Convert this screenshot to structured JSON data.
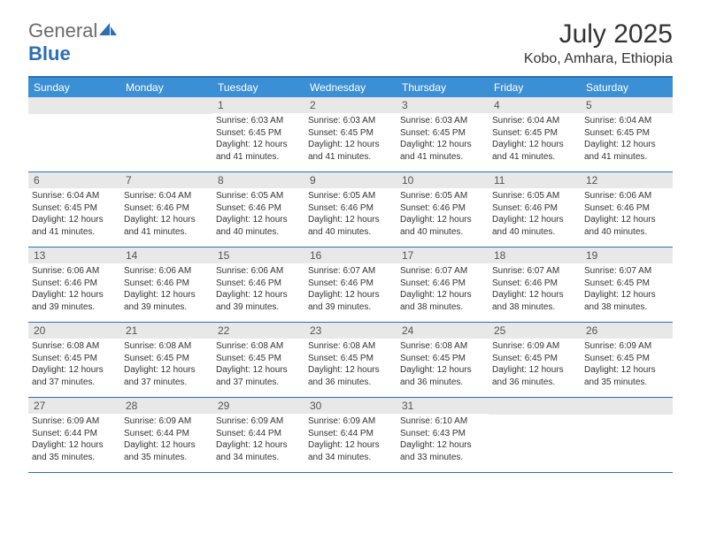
{
  "logo": {
    "text1": "General",
    "text2": "Blue"
  },
  "title": "July 2025",
  "location": "Kobo, Amhara, Ethiopia",
  "colors": {
    "header_bg": "#3b8fd4",
    "header_text": "#ffffff",
    "border": "#2c6fb3",
    "daynum_bg": "#e8e8e8",
    "daynum_text": "#555555",
    "body_text": "#333333"
  },
  "day_names": [
    "Sunday",
    "Monday",
    "Tuesday",
    "Wednesday",
    "Thursday",
    "Friday",
    "Saturday"
  ],
  "weeks": [
    [
      null,
      null,
      {
        "n": "1",
        "sr": "6:03 AM",
        "ss": "6:45 PM",
        "dl": "12 hours and 41 minutes."
      },
      {
        "n": "2",
        "sr": "6:03 AM",
        "ss": "6:45 PM",
        "dl": "12 hours and 41 minutes."
      },
      {
        "n": "3",
        "sr": "6:03 AM",
        "ss": "6:45 PM",
        "dl": "12 hours and 41 minutes."
      },
      {
        "n": "4",
        "sr": "6:04 AM",
        "ss": "6:45 PM",
        "dl": "12 hours and 41 minutes."
      },
      {
        "n": "5",
        "sr": "6:04 AM",
        "ss": "6:45 PM",
        "dl": "12 hours and 41 minutes."
      }
    ],
    [
      {
        "n": "6",
        "sr": "6:04 AM",
        "ss": "6:45 PM",
        "dl": "12 hours and 41 minutes."
      },
      {
        "n": "7",
        "sr": "6:04 AM",
        "ss": "6:46 PM",
        "dl": "12 hours and 41 minutes."
      },
      {
        "n": "8",
        "sr": "6:05 AM",
        "ss": "6:46 PM",
        "dl": "12 hours and 40 minutes."
      },
      {
        "n": "9",
        "sr": "6:05 AM",
        "ss": "6:46 PM",
        "dl": "12 hours and 40 minutes."
      },
      {
        "n": "10",
        "sr": "6:05 AM",
        "ss": "6:46 PM",
        "dl": "12 hours and 40 minutes."
      },
      {
        "n": "11",
        "sr": "6:05 AM",
        "ss": "6:46 PM",
        "dl": "12 hours and 40 minutes."
      },
      {
        "n": "12",
        "sr": "6:06 AM",
        "ss": "6:46 PM",
        "dl": "12 hours and 40 minutes."
      }
    ],
    [
      {
        "n": "13",
        "sr": "6:06 AM",
        "ss": "6:46 PM",
        "dl": "12 hours and 39 minutes."
      },
      {
        "n": "14",
        "sr": "6:06 AM",
        "ss": "6:46 PM",
        "dl": "12 hours and 39 minutes."
      },
      {
        "n": "15",
        "sr": "6:06 AM",
        "ss": "6:46 PM",
        "dl": "12 hours and 39 minutes."
      },
      {
        "n": "16",
        "sr": "6:07 AM",
        "ss": "6:46 PM",
        "dl": "12 hours and 39 minutes."
      },
      {
        "n": "17",
        "sr": "6:07 AM",
        "ss": "6:46 PM",
        "dl": "12 hours and 38 minutes."
      },
      {
        "n": "18",
        "sr": "6:07 AM",
        "ss": "6:46 PM",
        "dl": "12 hours and 38 minutes."
      },
      {
        "n": "19",
        "sr": "6:07 AM",
        "ss": "6:45 PM",
        "dl": "12 hours and 38 minutes."
      }
    ],
    [
      {
        "n": "20",
        "sr": "6:08 AM",
        "ss": "6:45 PM",
        "dl": "12 hours and 37 minutes."
      },
      {
        "n": "21",
        "sr": "6:08 AM",
        "ss": "6:45 PM",
        "dl": "12 hours and 37 minutes."
      },
      {
        "n": "22",
        "sr": "6:08 AM",
        "ss": "6:45 PM",
        "dl": "12 hours and 37 minutes."
      },
      {
        "n": "23",
        "sr": "6:08 AM",
        "ss": "6:45 PM",
        "dl": "12 hours and 36 minutes."
      },
      {
        "n": "24",
        "sr": "6:08 AM",
        "ss": "6:45 PM",
        "dl": "12 hours and 36 minutes."
      },
      {
        "n": "25",
        "sr": "6:09 AM",
        "ss": "6:45 PM",
        "dl": "12 hours and 36 minutes."
      },
      {
        "n": "26",
        "sr": "6:09 AM",
        "ss": "6:45 PM",
        "dl": "12 hours and 35 minutes."
      }
    ],
    [
      {
        "n": "27",
        "sr": "6:09 AM",
        "ss": "6:44 PM",
        "dl": "12 hours and 35 minutes."
      },
      {
        "n": "28",
        "sr": "6:09 AM",
        "ss": "6:44 PM",
        "dl": "12 hours and 35 minutes."
      },
      {
        "n": "29",
        "sr": "6:09 AM",
        "ss": "6:44 PM",
        "dl": "12 hours and 34 minutes."
      },
      {
        "n": "30",
        "sr": "6:09 AM",
        "ss": "6:44 PM",
        "dl": "12 hours and 34 minutes."
      },
      {
        "n": "31",
        "sr": "6:10 AM",
        "ss": "6:43 PM",
        "dl": "12 hours and 33 minutes."
      },
      null,
      null
    ]
  ],
  "labels": {
    "sunrise": "Sunrise: ",
    "sunset": "Sunset: ",
    "daylight": "Daylight: "
  }
}
